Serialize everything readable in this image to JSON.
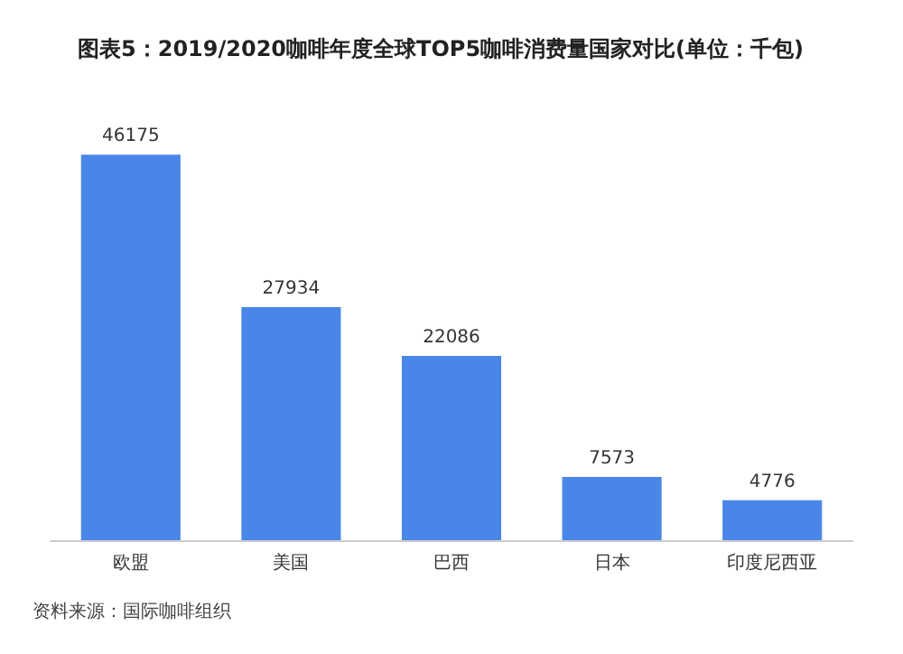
{
  "chart_data": {
    "type": "bar",
    "title": "图表5：2019/2020咖啡年度全球TOP5咖啡消费量国家对比(单位：千包)",
    "categories": [
      "欧盟",
      "美国",
      "巴西",
      "日本",
      "印度尼西亚"
    ],
    "values": [
      46175,
      27934,
      22086,
      7573,
      4776
    ],
    "color": "#4a86e8",
    "data_labels": true,
    "annotations": [
      "资料来源：国际咖啡组织"
    ]
  }
}
